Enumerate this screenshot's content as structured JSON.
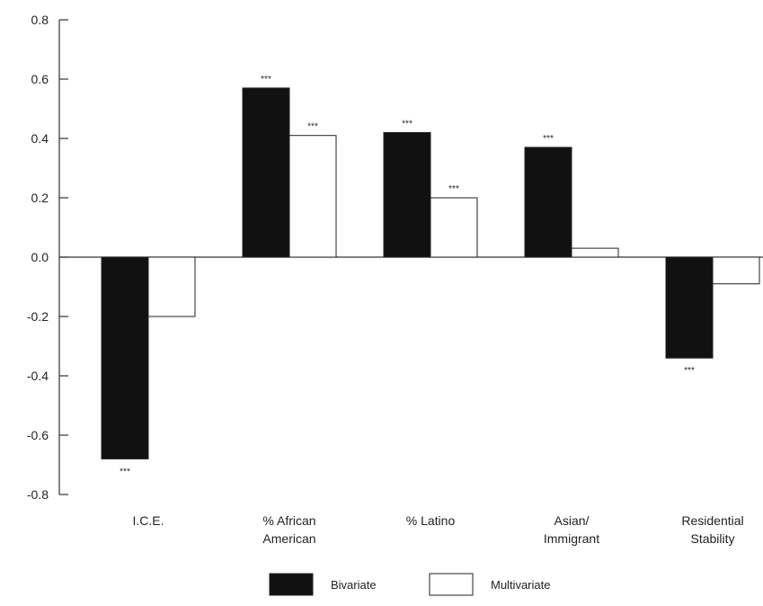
{
  "chart_data": {
    "type": "bar",
    "title": "",
    "xlabel": "",
    "ylabel": "",
    "ylim": [
      -0.8,
      0.8
    ],
    "yticks": [
      "0.8",
      "0.6",
      "0.4",
      "0.2",
      "0.0",
      "-0.2",
      "-0.4",
      "-0.6",
      "-0.8"
    ],
    "categories": [
      [
        "I.C.E."
      ],
      [
        "% African",
        "American"
      ],
      [
        "% Latino"
      ],
      [
        "Asian/",
        "Immigrant"
      ],
      [
        "Residential",
        "Stability"
      ]
    ],
    "series": [
      {
        "name": "Bivariate",
        "color": "#111111",
        "values": [
          -0.68,
          0.57,
          0.42,
          0.37,
          -0.34
        ],
        "sig": [
          "***",
          "***",
          "***",
          "***",
          "***"
        ]
      },
      {
        "name": "Multivariate",
        "color": "#ffffff",
        "values": [
          -0.2,
          0.41,
          0.2,
          0.03,
          -0.09
        ],
        "sig": [
          "",
          "***",
          "***",
          "",
          ""
        ]
      }
    ],
    "legend_position": "bottom-center",
    "grid": false
  }
}
